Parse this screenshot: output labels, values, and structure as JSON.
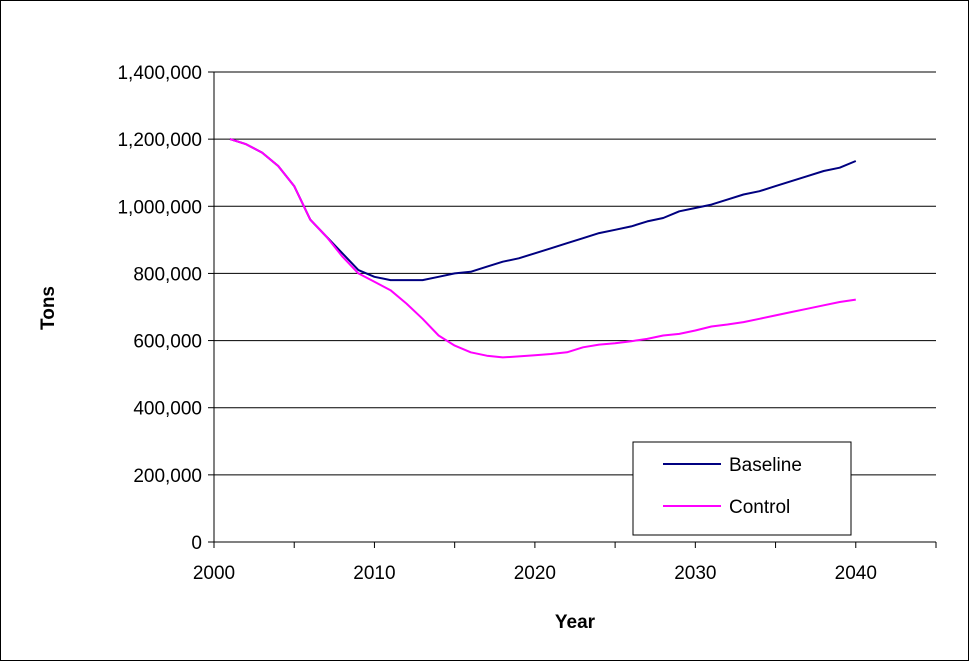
{
  "chart_data": {
    "type": "line",
    "title": "",
    "xlabel": "Year",
    "ylabel": "Tons",
    "xlim": [
      2000,
      2045
    ],
    "ylim": [
      0,
      1400000
    ],
    "x_ticks": [
      2000,
      2010,
      2020,
      2030,
      2040
    ],
    "x_tick_labels": [
      "2000",
      "2010",
      "2020",
      "2030",
      "2040"
    ],
    "y_ticks": [
      0,
      200000,
      400000,
      600000,
      800000,
      1000000,
      1200000,
      1400000
    ],
    "y_tick_labels": [
      "0",
      "200,000",
      "400,000",
      "600,000",
      "800,000",
      "1,000,000",
      "1,200,000",
      "1,400,000"
    ],
    "grid": "horizontal",
    "legend_position": "bottom-right",
    "x": [
      2001,
      2002,
      2003,
      2004,
      2005,
      2006,
      2007,
      2008,
      2009,
      2010,
      2011,
      2012,
      2013,
      2014,
      2015,
      2016,
      2017,
      2018,
      2019,
      2020,
      2021,
      2022,
      2023,
      2024,
      2025,
      2026,
      2027,
      2028,
      2029,
      2030,
      2031,
      2032,
      2033,
      2034,
      2035,
      2036,
      2037,
      2038,
      2039,
      2040
    ],
    "series": [
      {
        "name": "Baseline",
        "color": "#000080",
        "values": [
          1200000,
          1185000,
          1160000,
          1120000,
          1060000,
          960000,
          910000,
          860000,
          810000,
          790000,
          780000,
          780000,
          780000,
          790000,
          800000,
          805000,
          820000,
          835000,
          845000,
          860000,
          875000,
          890000,
          905000,
          920000,
          930000,
          940000,
          955000,
          965000,
          985000,
          995000,
          1005000,
          1020000,
          1035000,
          1045000,
          1060000,
          1075000,
          1090000,
          1105000,
          1115000,
          1135000
        ]
      },
      {
        "name": "Control",
        "color": "#FF00FF",
        "values": [
          1200000,
          1185000,
          1160000,
          1120000,
          1060000,
          960000,
          910000,
          850000,
          800000,
          775000,
          750000,
          710000,
          665000,
          615000,
          585000,
          565000,
          555000,
          550000,
          553000,
          556000,
          560000,
          565000,
          580000,
          588000,
          592000,
          598000,
          605000,
          615000,
          620000,
          630000,
          642000,
          648000,
          655000,
          665000,
          675000,
          685000,
          695000,
          705000,
          715000,
          722000
        ]
      }
    ]
  }
}
